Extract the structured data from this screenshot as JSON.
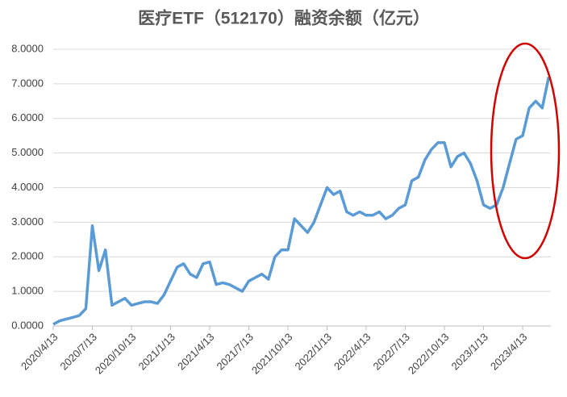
{
  "chart_data": {
    "type": "line",
    "title": "医疗ETF（512170）融资余额（亿元）",
    "categories": [
      "2020/4/13",
      null,
      null,
      null,
      null,
      null,
      "2020/7/13",
      null,
      null,
      null,
      null,
      null,
      "2020/10/13",
      null,
      null,
      null,
      null,
      null,
      "2021/1/13",
      null,
      null,
      null,
      null,
      null,
      "2021/4/13",
      null,
      null,
      null,
      null,
      null,
      "2021/7/13",
      null,
      null,
      null,
      null,
      null,
      "2021/10/13",
      null,
      null,
      null,
      null,
      null,
      "2022/1/13",
      null,
      null,
      null,
      null,
      null,
      "2022/4/13",
      null,
      null,
      null,
      null,
      null,
      "2022/7/13",
      null,
      null,
      null,
      null,
      null,
      "2022/10/13",
      null,
      null,
      null,
      null,
      null,
      "2023/1/13",
      null,
      null,
      null,
      null,
      null,
      "2023/4/13",
      null,
      null,
      null,
      null
    ],
    "values": [
      0.05,
      0.15,
      0.2,
      0.25,
      0.3,
      0.5,
      2.9,
      1.6,
      2.2,
      0.6,
      0.7,
      0.8,
      0.6,
      0.65,
      0.7,
      0.7,
      0.65,
      0.9,
      1.3,
      1.7,
      1.8,
      1.5,
      1.4,
      1.8,
      1.85,
      1.2,
      1.25,
      1.2,
      1.1,
      1.0,
      1.3,
      1.4,
      1.5,
      1.35,
      2.0,
      2.2,
      2.2,
      3.1,
      2.9,
      2.7,
      3.0,
      3.5,
      4.0,
      3.8,
      3.9,
      3.3,
      3.2,
      3.3,
      3.2,
      3.2,
      3.3,
      3.1,
      3.2,
      3.4,
      3.5,
      4.2,
      4.3,
      4.8,
      5.1,
      5.3,
      5.3,
      4.6,
      4.9,
      5.0,
      4.7,
      4.2,
      3.5,
      3.4,
      3.5,
      4.0,
      4.7,
      5.4,
      5.5,
      6.3,
      6.5,
      6.3,
      7.2
    ],
    "color": "#5b9bd5",
    "ylim": [
      0,
      8
    ],
    "yticks": [
      {
        "value": 0,
        "label": "0.0000"
      },
      {
        "value": 1,
        "label": "1.0000"
      },
      {
        "value": 2,
        "label": "2.0000"
      },
      {
        "value": 3,
        "label": "3.0000"
      },
      {
        "value": 4,
        "label": "4.0000"
      },
      {
        "value": 5,
        "label": "5.0000"
      },
      {
        "value": 6,
        "label": "6.0000"
      },
      {
        "value": 7,
        "label": "7.0000"
      },
      {
        "value": 8,
        "label": "8.0000"
      }
    ],
    "grid": true
  }
}
